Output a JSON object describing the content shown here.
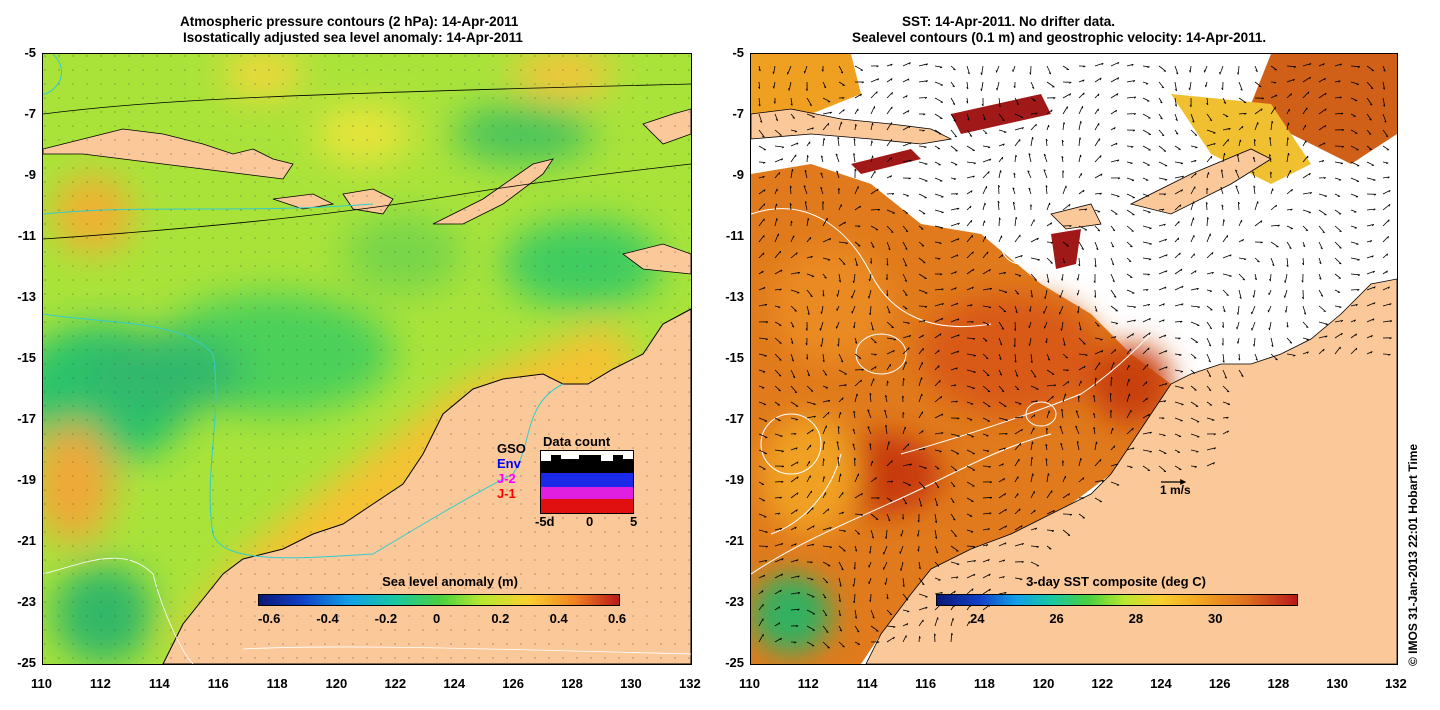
{
  "left_panel": {
    "title_line1": "Atmospheric pressure contours (2 hPa): 14-Apr-2011",
    "title_line2": "Isostatically adjusted sea level anomaly: 14-Apr-2011",
    "colorbar": {
      "title": "Sea level anomaly (m)",
      "ticks": [
        "-0.6",
        "-0.4",
        "-0.2",
        "0",
        "0.2",
        "0.4",
        "0.6"
      ]
    },
    "data_count": {
      "title": "Data count",
      "labels": [
        "GSO",
        "Env",
        "J-2",
        "J-1"
      ],
      "label_colors": [
        "#000000",
        "#0000ff",
        "#ff00ff",
        "#ff0000"
      ],
      "x_ticks": [
        "-5d",
        "0",
        "5"
      ]
    }
  },
  "right_panel": {
    "title_line1": "SST: 14-Apr-2011. No drifter data.",
    "title_line2": "Sealevel contours (0.1 m) and geostrophic velocity: 14-Apr-2011.",
    "colorbar": {
      "title": "3-day SST composite (deg C)",
      "ticks": [
        "24",
        "26",
        "28",
        "30"
      ]
    },
    "velocity_scale_label": "1 m/s"
  },
  "axes": {
    "x_ticks": [
      "110",
      "112",
      "114",
      "116",
      "118",
      "120",
      "122",
      "124",
      "126",
      "128",
      "130",
      "132"
    ],
    "y_ticks": [
      "-5",
      "-7",
      "-9",
      "-11",
      "-13",
      "-15",
      "-17",
      "-19",
      "-21",
      "-23",
      "-25"
    ]
  },
  "credit": "© IMOS 31-Jan-2013 22:01 Hobart Time",
  "colors": {
    "land": "#fbc89a",
    "no_data": "#ffffff"
  }
}
